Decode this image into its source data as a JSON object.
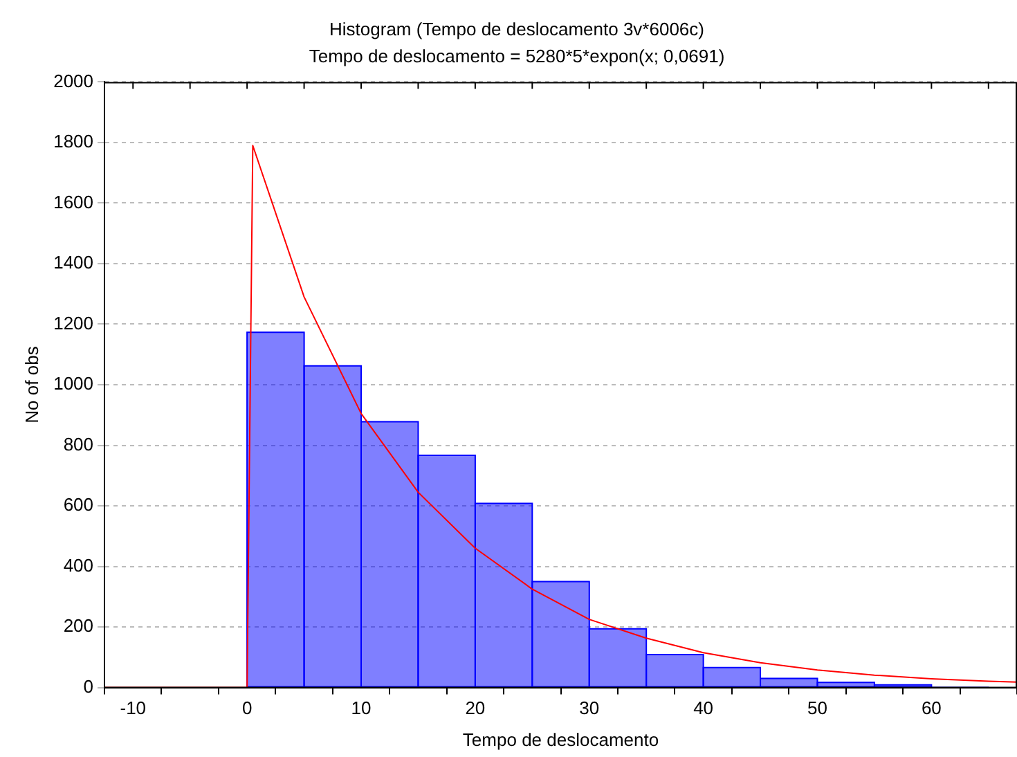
{
  "chart_data": {
    "type": "histogram",
    "title": "Histogram (Tempo de deslocamento 3v*6006c)",
    "subtitle": "Tempo de deslocamento = 5280*5*expon(x; 0,0691)",
    "xlabel": "Tempo de deslocamento",
    "ylabel": "No of obs",
    "bins": [
      -10,
      -5,
      0,
      5,
      10,
      15,
      20,
      25,
      30,
      35,
      40,
      45,
      50,
      55,
      60,
      65
    ],
    "values": [
      0,
      0,
      1173,
      1062,
      878,
      767,
      608,
      350,
      194,
      109,
      66,
      30,
      17,
      9,
      2
    ],
    "color": "#0000ff",
    "series": [
      {
        "type": "line",
        "color": "#ff0000",
        "x": [
          -12.5,
          0,
          0.5,
          5,
          10,
          15,
          20,
          25,
          30,
          35,
          40,
          45,
          50,
          55,
          60,
          65,
          67.5
        ],
        "values": [
          0,
          0,
          1790,
          1290,
          905,
          645,
          460,
          325,
          225,
          163,
          115,
          82,
          58,
          41,
          29,
          21,
          18
        ]
      }
    ],
    "xlim": [
      -12.5,
      67.5
    ],
    "xticks": [
      -10,
      {
        "value": -5,
        "label": null
      },
      0,
      {
        "value": 5,
        "label": null
      },
      10,
      {
        "value": 15,
        "label": null
      },
      20,
      {
        "value": 25,
        "label": null
      },
      30,
      {
        "value": 35,
        "label": null
      },
      40,
      {
        "value": 45,
        "label": null
      },
      50,
      {
        "value": 55,
        "label": null
      },
      60,
      {
        "value": 65,
        "label": null
      }
    ],
    "ylim": [
      0,
      2000
    ],
    "yticks": [
      0,
      200,
      400,
      600,
      800,
      1000,
      1200,
      1400,
      1600,
      1800,
      2000
    ],
    "grid": "y",
    "legend": false,
    "marker": "none",
    "line_style": "solid"
  }
}
